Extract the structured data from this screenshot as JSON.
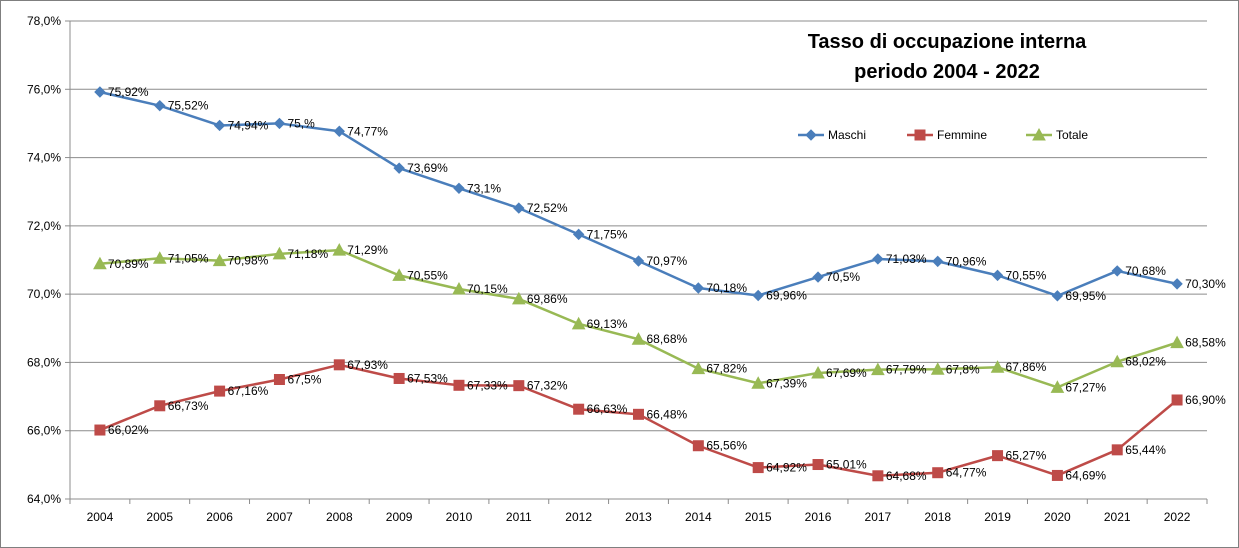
{
  "chart_data": {
    "type": "line",
    "title": "Tasso di occupazione interna",
    "subtitle": "periodo 2004 - 2022",
    "xlabel": "",
    "ylabel": "",
    "ylim": [
      64,
      78
    ],
    "y_ticks": [
      64,
      66,
      68,
      70,
      72,
      74,
      76,
      78
    ],
    "y_tick_labels": [
      "64,0%",
      "66,0%",
      "68,0%",
      "70,0%",
      "72,0%",
      "74,0%",
      "76,0%",
      "78,0%"
    ],
    "grid": true,
    "legend_position": "top-right",
    "categories": [
      "2004",
      "2005",
      "2006",
      "2007",
      "2008",
      "2009",
      "2010",
      "2011",
      "2012",
      "2013",
      "2014",
      "2015",
      "2016",
      "2017",
      "2018",
      "2019",
      "2020",
      "2021",
      "2022"
    ],
    "series": [
      {
        "name": "Maschi",
        "color": "#4a7ebb",
        "marker": "diamond",
        "values": [
          75.92,
          75.52,
          74.94,
          75.0,
          74.77,
          73.69,
          73.1,
          72.52,
          71.75,
          70.97,
          70.18,
          69.96,
          70.5,
          71.03,
          70.96,
          70.55,
          69.95,
          70.68,
          70.3
        ],
        "labels": [
          "75,92%",
          "75,52%",
          "74,94%",
          "75,%",
          "74,77%",
          "73,69%",
          "73,1%",
          "72,52%",
          "71,75%",
          "70,97%",
          "70,18%",
          "69,96%",
          "70,5%",
          "71,03%",
          "70,96%",
          "70,55%",
          "69,95%",
          "70,68%",
          "70,30%"
        ]
      },
      {
        "name": "Femmine",
        "color": "#be4b48",
        "marker": "square",
        "values": [
          66.02,
          66.73,
          67.16,
          67.5,
          67.93,
          67.53,
          67.33,
          67.32,
          66.63,
          66.48,
          65.56,
          64.92,
          65.01,
          64.68,
          64.77,
          65.27,
          64.69,
          65.44,
          66.9
        ],
        "labels": [
          "66,02%",
          "66,73%",
          "67,16%",
          "67,5%",
          "67,93%",
          "67,53%",
          "67,33%",
          "67,32%",
          "66,63%",
          "66,48%",
          "65,56%",
          "64,92%",
          "65,01%",
          "64,68%",
          "64,77%",
          "65,27%",
          "64,69%",
          "65,44%",
          "66,90%"
        ]
      },
      {
        "name": "Totale",
        "color": "#98b954",
        "marker": "triangle",
        "values": [
          70.89,
          71.05,
          70.98,
          71.18,
          71.29,
          70.55,
          70.15,
          69.86,
          69.13,
          68.68,
          67.82,
          67.39,
          67.69,
          67.79,
          67.8,
          67.86,
          67.27,
          68.02,
          68.58
        ],
        "labels": [
          "70,89%",
          "71,05%",
          "70,98%",
          "71,18%",
          "71,29%",
          "70,55%",
          "70,15%",
          "69,86%",
          "69,13%",
          "68,68%",
          "67,82%",
          "67,39%",
          "67,69%",
          "67,79%",
          "67,8%",
          "67,86%",
          "67,27%",
          "68,02%",
          "68,58%"
        ]
      }
    ]
  }
}
